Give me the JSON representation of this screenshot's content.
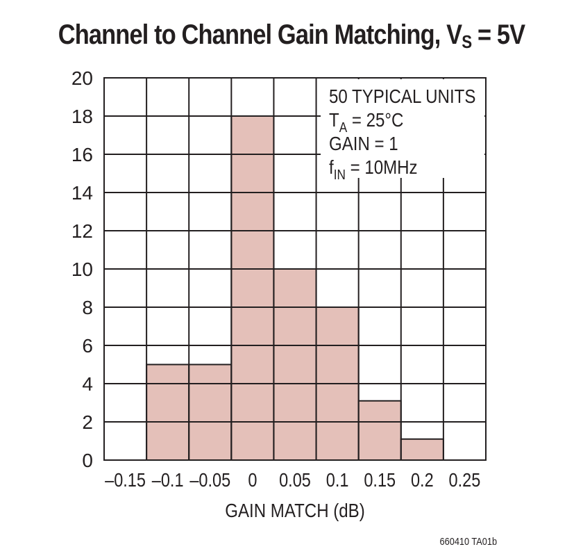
{
  "chart_data": {
    "type": "bar",
    "title_main": "Channel to Channel Gain Matching, V",
    "title_sub": "S",
    "title_tail": " = 5V",
    "xlabel": "GAIN MATCH (dB)",
    "ylabel": "",
    "x_ticks": [
      "–0.15",
      "–0.1",
      "–0.05",
      "0",
      "0.05",
      "0.1",
      "0.15",
      "0.2",
      "0.25"
    ],
    "y_ticks": [
      "0",
      "2",
      "4",
      "6",
      "8",
      "10",
      "12",
      "14",
      "16",
      "18",
      "20"
    ],
    "ylim": [
      0,
      20
    ],
    "bins": [
      -0.15,
      -0.1,
      -0.05,
      0,
      0.05,
      0.1,
      0.15,
      0.2,
      0.25
    ],
    "values": [
      0,
      5,
      5,
      18,
      10,
      8,
      3.1,
      1.1,
      0
    ],
    "bar_color": "#e4c0b9",
    "grid": true,
    "legend_box": {
      "placement": "top-right",
      "lines": [
        {
          "text": "50 TYPICAL UNITS",
          "sub": "",
          "tail": ""
        },
        {
          "text": "T",
          "sub": "A",
          "tail": " = 25°C"
        },
        {
          "text": "GAIN = 1",
          "sub": "",
          "tail": ""
        },
        {
          "text": "f",
          "sub": "IN",
          "tail": " = 10MHz"
        }
      ]
    }
  },
  "figure_code": "660410 TA01b"
}
